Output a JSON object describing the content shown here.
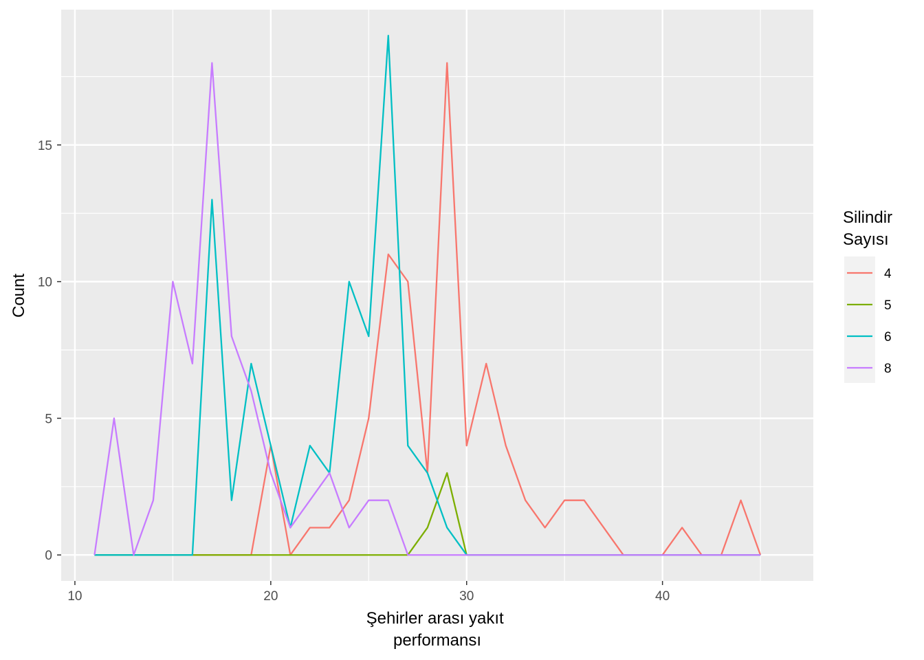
{
  "chart_data": {
    "type": "line",
    "xlabel_lines": [
      "Şehirler arası yakıt",
      "performansı"
    ],
    "ylabel": "Count",
    "xlim": [
      9.3,
      47.7
    ],
    "ylim": [
      -0.95,
      19.95
    ],
    "x_ticks": [
      10,
      20,
      30,
      40
    ],
    "x_minor_ticks": [
      15,
      25,
      35,
      45
    ],
    "y_ticks": [
      0,
      5,
      10,
      15
    ],
    "y_minor_ticks": [
      2.5,
      7.5,
      12.5,
      17.5
    ],
    "grid": true,
    "legend": {
      "position": "right",
      "title_lines": [
        "Silindir",
        "Sayısı"
      ]
    },
    "series": [
      {
        "name": "4",
        "color": "#F8766D",
        "x": [
          11,
          12,
          13,
          14,
          15,
          16,
          17,
          18,
          19,
          20,
          21,
          22,
          23,
          24,
          25,
          26,
          27,
          28,
          29,
          30,
          31,
          32,
          33,
          34,
          35,
          36,
          37,
          38,
          39,
          40,
          41,
          42,
          43,
          44,
          45
        ],
        "y": [
          0,
          0,
          0,
          0,
          0,
          0,
          0,
          0,
          0,
          4,
          0,
          1,
          1,
          2,
          5,
          11,
          10,
          3,
          18,
          4,
          7,
          4,
          2,
          1,
          2,
          2,
          1,
          0,
          0,
          0,
          1,
          0,
          0,
          2,
          0
        ]
      },
      {
        "name": "5",
        "color": "#7CAE00",
        "x": [
          11,
          12,
          13,
          14,
          15,
          16,
          17,
          18,
          19,
          20,
          21,
          22,
          23,
          24,
          25,
          26,
          27,
          28,
          29,
          30,
          31,
          32,
          33,
          34,
          35,
          36,
          37,
          38,
          39,
          40,
          41,
          42,
          43,
          44,
          45
        ],
        "y": [
          0,
          0,
          0,
          0,
          0,
          0,
          0,
          0,
          0,
          0,
          0,
          0,
          0,
          0,
          0,
          0,
          0,
          1,
          3,
          0,
          0,
          0,
          0,
          0,
          0,
          0,
          0,
          0,
          0,
          0,
          0,
          0,
          0,
          0,
          0
        ]
      },
      {
        "name": "6",
        "color": "#00BFC4",
        "x": [
          11,
          12,
          13,
          14,
          15,
          16,
          17,
          18,
          19,
          20,
          21,
          22,
          23,
          24,
          25,
          26,
          27,
          28,
          29,
          30,
          31,
          32,
          33,
          34,
          35,
          36,
          37,
          38,
          39,
          40,
          41,
          42,
          43,
          44,
          45
        ],
        "y": [
          0,
          0,
          0,
          0,
          0,
          0,
          13,
          2,
          7,
          4,
          1,
          4,
          3,
          10,
          8,
          19,
          4,
          3,
          1,
          0,
          0,
          0,
          0,
          0,
          0,
          0,
          0,
          0,
          0,
          0,
          0,
          0,
          0,
          0,
          0
        ]
      },
      {
        "name": "8",
        "color": "#C77CFF",
        "x": [
          11,
          12,
          13,
          14,
          15,
          16,
          17,
          18,
          19,
          20,
          21,
          22,
          23,
          24,
          25,
          26,
          27,
          28,
          29,
          30,
          31,
          32,
          33,
          34,
          35,
          36,
          37,
          38,
          39,
          40,
          41,
          42,
          43,
          44,
          45
        ],
        "y": [
          0,
          5,
          0,
          2,
          10,
          7,
          18,
          8,
          6,
          3,
          1,
          2,
          3,
          1,
          2,
          2,
          0,
          0,
          0,
          0,
          0,
          0,
          0,
          0,
          0,
          0,
          0,
          0,
          0,
          0,
          0,
          0,
          0,
          0,
          0
        ]
      }
    ]
  }
}
